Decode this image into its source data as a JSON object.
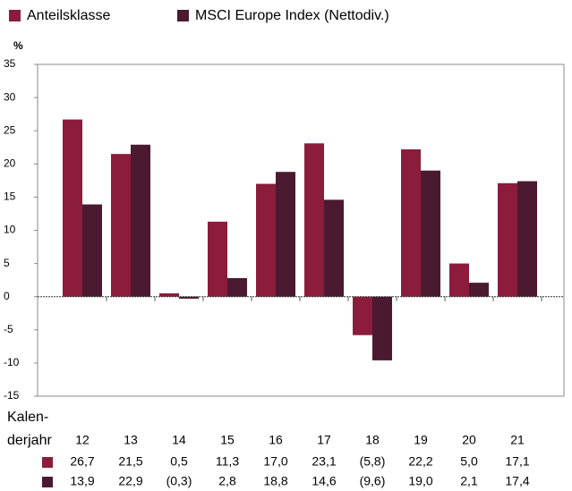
{
  "chart_data": {
    "type": "bar",
    "y_unit": "%",
    "x_label_lines": [
      "Kalen-",
      "derjahr"
    ],
    "categories": [
      "12",
      "13",
      "14",
      "15",
      "16",
      "17",
      "18",
      "19",
      "20",
      "21"
    ],
    "series": [
      {
        "name": "Anteilsklasse",
        "color": "#8c1c3c",
        "values": [
          26.7,
          21.5,
          0.5,
          11.3,
          17.0,
          23.1,
          -5.8,
          22.2,
          5.0,
          17.1
        ],
        "value_labels": [
          "26,7",
          "21,5",
          "0,5",
          "11,3",
          "17,0",
          "23,1",
          "(5,8)",
          "22,2",
          "5,0",
          "17,1"
        ]
      },
      {
        "name": "MSCI Europe Index (Nettodiv.)",
        "color": "#4b1a30",
        "values": [
          13.9,
          22.9,
          -0.3,
          2.8,
          18.8,
          14.6,
          -9.6,
          19.0,
          2.1,
          17.4
        ],
        "value_labels": [
          "13,9",
          "22,9",
          "(0,3)",
          "2,8",
          "18,8",
          "14,6",
          "(9,6)",
          "19,0",
          "2,1",
          "17,4"
        ]
      }
    ],
    "ylim": [
      -15,
      35
    ],
    "yticks": [
      -15,
      -10,
      -5,
      0,
      5,
      10,
      15,
      20,
      25,
      30,
      35
    ],
    "grid": false,
    "legend": "top"
  }
}
